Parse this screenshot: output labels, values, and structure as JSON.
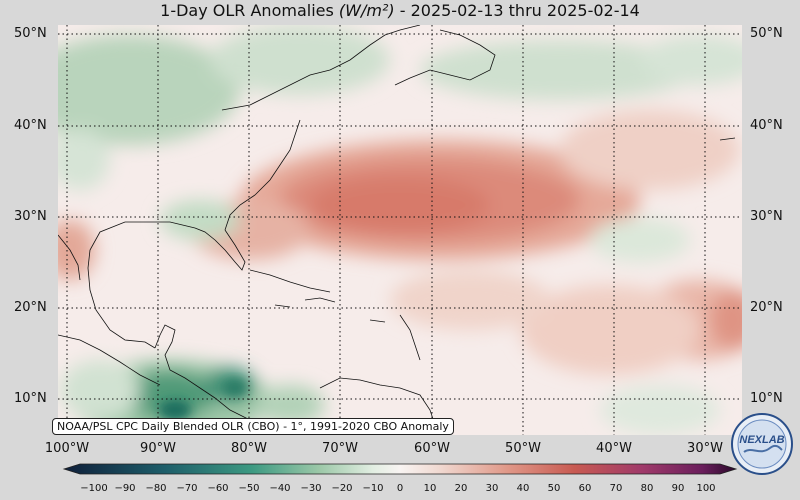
{
  "title": "1-Day OLR Anomalies",
  "title_unit": "(W/m²)",
  "title_dates": "- 2025-02-13 thru 2025-02-14",
  "credit": "NOAA/PSL CPC Daily Blended OLR (CBO) - 1°, 1991-2020 CBO Anomaly",
  "logo_text": "NEXLAB",
  "lat_labels": [
    "50°N",
    "40°N",
    "30°N",
    "20°N",
    "10°N"
  ],
  "lon_labels": [
    "100°W",
    "90°W",
    "80°W",
    "70°W",
    "60°W",
    "50°W",
    "40°W",
    "30°W"
  ],
  "colorbar_ticks": [
    "−100",
    "−90",
    "−80",
    "−70",
    "−60",
    "−50",
    "−40",
    "−30",
    "−20",
    "−10",
    "0",
    "10",
    "20",
    "30",
    "40",
    "50",
    "60",
    "70",
    "80",
    "90",
    "100"
  ],
  "colors": {
    "positive_anomaly": "#d9796a",
    "weak_positive": "#f2d4cc",
    "neutral": "#f7efee",
    "weak_negative": "#cfe0cf",
    "negative_anomaly": "#4f9a78",
    "strong_negative": "#1d6e5f"
  }
}
